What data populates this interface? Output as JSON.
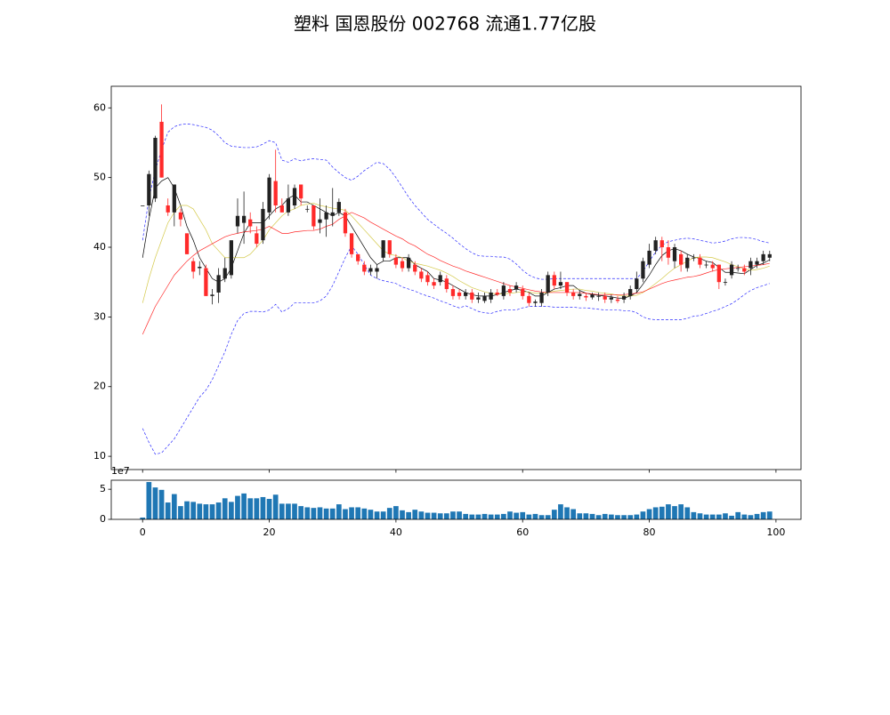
{
  "title": "塑料 国恩股份 002768 流通1.77亿股",
  "chart_data": [
    {
      "type": "candlestick",
      "x": [
        0,
        1,
        2,
        3,
        4,
        5,
        6,
        7,
        8,
        9,
        10,
        11,
        12,
        13,
        14,
        15,
        16,
        17,
        18,
        19,
        20,
        21,
        22,
        23,
        24,
        25,
        26,
        27,
        28,
        29,
        30,
        31,
        32,
        33,
        34,
        35,
        36,
        37,
        38,
        39,
        40,
        41,
        42,
        43,
        44,
        45,
        46,
        47,
        48,
        49,
        50,
        51,
        52,
        53,
        54,
        55,
        56,
        57,
        58,
        59,
        60,
        61,
        62,
        63,
        64,
        65,
        66,
        67,
        68,
        69,
        70,
        71,
        72,
        73,
        74,
        75,
        76,
        77,
        78,
        79,
        80,
        81,
        82,
        83,
        84,
        85,
        86,
        87,
        88,
        89,
        90,
        91,
        92,
        93,
        94,
        95,
        96,
        97,
        98,
        99
      ],
      "open": [
        46,
        46,
        47,
        58,
        46,
        45,
        45,
        42,
        38,
        37,
        37,
        33,
        33.5,
        35.5,
        36,
        43,
        43.5,
        44,
        42,
        41,
        45,
        49.5,
        46,
        45,
        46,
        49,
        45.5,
        46,
        43.5,
        44,
        44.5,
        45,
        45,
        42,
        39,
        37.5,
        36.5,
        36.5,
        38.5,
        41,
        38.5,
        38,
        37,
        37.5,
        36.5,
        36,
        35,
        35,
        35.5,
        34,
        33.5,
        33,
        33.5,
        32.5,
        32.3,
        32.5,
        33.5,
        33,
        34,
        34,
        34,
        33,
        32,
        32,
        33.5,
        36,
        34.5,
        35,
        33.5,
        33,
        33,
        32.8,
        33,
        33,
        32.5,
        32.5,
        32.5,
        33,
        34,
        35.5,
        37.5,
        39.5,
        41,
        40,
        38,
        39,
        37,
        38.5,
        38.5,
        37.5,
        37.5,
        37.5,
        35,
        36,
        37,
        37,
        37,
        37.5,
        38,
        38.5
      ],
      "high": [
        46,
        51,
        56,
        60.5,
        47,
        49,
        45.5,
        42,
        38.5,
        38,
        37.5,
        34,
        37,
        38.5,
        41,
        47,
        48,
        45,
        43,
        46.5,
        50.5,
        54,
        47,
        49,
        49,
        49,
        46,
        46,
        47,
        46,
        48.5,
        47,
        45.5,
        42,
        39,
        38,
        37.5,
        37.5,
        41,
        41,
        39,
        38.5,
        39,
        38,
        37,
        36.5,
        35.5,
        36.5,
        36,
        34.5,
        34,
        34,
        34,
        33.5,
        33.5,
        34,
        34,
        35,
        34.5,
        35,
        34.5,
        33.5,
        32.5,
        34,
        36.5,
        36.5,
        36.5,
        35,
        34,
        33.8,
        33.5,
        33.5,
        33.5,
        33.5,
        33.2,
        33,
        33.5,
        34.5,
        36.5,
        38.5,
        40.5,
        41.5,
        41.5,
        41,
        40.5,
        39.5,
        39,
        39,
        39,
        38,
        38,
        37.5,
        35.5,
        38,
        37.5,
        37.5,
        38.5,
        38.5,
        39.5,
        39.5
      ],
      "low": [
        46,
        44.5,
        46.5,
        50,
        44.5,
        43,
        43,
        39,
        35.5,
        36,
        33,
        31.8,
        32,
        35,
        35.5,
        42,
        40.5,
        42,
        40,
        40.5,
        44,
        45,
        45,
        44.5,
        45.5,
        46,
        45,
        42.5,
        42,
        41.5,
        43,
        44.5,
        41.5,
        38.5,
        37.5,
        36,
        36,
        35.5,
        38,
        38.5,
        37,
        36.5,
        36.5,
        36,
        35,
        34.5,
        34,
        34.5,
        33.5,
        32.5,
        32.5,
        32.5,
        32,
        32,
        32,
        32,
        33,
        32.5,
        33,
        33.5,
        32.5,
        31.5,
        31.5,
        31.5,
        33,
        34,
        34,
        33,
        32.5,
        32.5,
        32.3,
        32.5,
        32.3,
        32,
        32,
        32,
        32,
        32.5,
        33.5,
        35,
        37,
        39,
        38,
        37.5,
        37,
        36.5,
        36.5,
        38,
        37,
        37,
        36.5,
        34,
        34.5,
        35.5,
        36.5,
        36,
        36,
        37,
        37.5,
        38
      ],
      "close": [
        46,
        50.5,
        55.7,
        50,
        45,
        49,
        44,
        39,
        36.5,
        37.2,
        33,
        33.2,
        36,
        37,
        41,
        44.5,
        44.5,
        43,
        40.5,
        45.5,
        50,
        46,
        45,
        47,
        48.5,
        47,
        45.5,
        43,
        44,
        45,
        45,
        46.5,
        42,
        39,
        38,
        36.5,
        37,
        37,
        41,
        39,
        37.5,
        37,
        38.5,
        36.5,
        35.5,
        35,
        34.5,
        36,
        34,
        33,
        33,
        33.5,
        32.5,
        32.8,
        33,
        33.5,
        33.2,
        34.5,
        33.5,
        34.5,
        33,
        32,
        32.2,
        33.5,
        36,
        34.5,
        35,
        33.5,
        33,
        33.3,
        32.8,
        33.2,
        33,
        32.5,
        32.8,
        32.3,
        33,
        34,
        35.5,
        38,
        39.5,
        41,
        40,
        38.5,
        40,
        37.5,
        38.5,
        38.5,
        37.5,
        37.5,
        37,
        35,
        35,
        37.5,
        37,
        36.5,
        38,
        38,
        39,
        39
      ],
      "up_color": "#222222",
      "down_color": "#ff2a2a",
      "lines": [
        {
          "color": "#000000",
          "style": "solid",
          "values": [
            38.5,
            44,
            48.5,
            49.5,
            50,
            48.5,
            46,
            43,
            41,
            38.5,
            37,
            35.5,
            35,
            35.5,
            37,
            39.5,
            42,
            43.5,
            43.5,
            43.5,
            44.5,
            45.5,
            46,
            47,
            47.5,
            46.5,
            46.5,
            46,
            45.5,
            45,
            44.5,
            45,
            44.5,
            43,
            41.5,
            40,
            38.5,
            37.5,
            38,
            38,
            38.5,
            38.5,
            38.5,
            37.5,
            37,
            36.5,
            35.5,
            35.3,
            35,
            34.5,
            34,
            33.5,
            33.2,
            33,
            33,
            33,
            33.2,
            33.5,
            33.8,
            34,
            33.8,
            33.5,
            33,
            33,
            33.5,
            34,
            34.2,
            34.5,
            34.5,
            33.8,
            33.4,
            33.2,
            33.1,
            33,
            32.9,
            32.7,
            32.7,
            33,
            33.5,
            34.7,
            36,
            37.5,
            38.8,
            39.5,
            39.8,
            39.5,
            39,
            38.6,
            38.4,
            38,
            37.8,
            37.1,
            36.4,
            36.4,
            36.3,
            36.2,
            36.8,
            37.4,
            37.7,
            38.2
          ]
        },
        {
          "color": "#d4c94a",
          "style": "solid",
          "values": [
            32,
            35.5,
            38.5,
            41,
            43.5,
            45,
            46,
            46,
            45.5,
            44,
            42.5,
            40.5,
            39.5,
            38.5,
            38.5,
            38.5,
            38.5,
            39,
            40,
            41,
            42.5,
            43.5,
            44.5,
            45.2,
            45.5,
            46,
            46.2,
            46.3,
            46,
            45.8,
            45.6,
            45.5,
            45.3,
            44.5,
            43.5,
            42.5,
            41.5,
            40.5,
            39.5,
            39,
            38.8,
            38.5,
            38,
            37.7,
            37.5,
            37.3,
            37,
            36.7,
            36.3,
            35.8,
            35.2,
            34.7,
            34.2,
            33.9,
            33.6,
            33.4,
            33.3,
            33.3,
            33.4,
            33.5,
            33.6,
            33.6,
            33.4,
            33.4,
            33.5,
            33.7,
            33.8,
            33.9,
            34,
            34,
            33.8,
            33.7,
            33.5,
            33.4,
            33.3,
            33.1,
            33,
            33,
            33.1,
            33.5,
            34.1,
            34.8,
            35.5,
            36.3,
            37,
            37.5,
            38,
            38.5,
            38.6,
            38.6,
            38.5,
            38.2,
            37.9,
            37.5,
            37.2,
            36.9,
            36.7,
            36.8,
            37,
            37.3
          ]
        },
        {
          "color": "#ff2a2a",
          "style": "solid",
          "values": [
            27.5,
            29.5,
            31.5,
            33,
            34.5,
            36,
            37,
            38,
            38.8,
            39.5,
            40,
            40.5,
            41,
            41.5,
            41.8,
            42,
            42.2,
            42.3,
            42.4,
            42.6,
            43,
            42.5,
            42,
            42,
            42.2,
            42.3,
            42.4,
            42.4,
            42.6,
            43,
            43.3,
            44,
            44.5,
            45,
            44.6,
            44.2,
            43.6,
            43.1,
            42.6,
            42.1,
            41.6,
            41.2,
            40.6,
            40.2,
            39.6,
            39,
            38.6,
            38.1,
            37.7,
            37.3,
            37,
            36.6,
            36.3,
            36,
            35.7,
            35.4,
            35.1,
            34.8,
            34.5,
            34.3,
            34.1,
            33.9,
            33.7,
            33.6,
            33.5,
            33.5,
            33.5,
            33.5,
            33.5,
            33.5,
            33.4,
            33.3,
            33.2,
            33.2,
            33.2,
            33.2,
            33.2,
            33.3,
            33.4,
            33.6,
            34,
            34.4,
            34.8,
            35.1,
            35.3,
            35.5,
            35.7,
            35.8,
            36,
            36.3,
            36.6,
            36.8,
            36.9,
            37,
            37.1,
            37.2,
            37.3,
            37.4,
            37.5,
            37.7
          ]
        },
        {
          "color": "#2a2aff",
          "style": "dashed",
          "values": [
            41,
            47,
            51,
            54,
            56.5,
            57.3,
            57.6,
            57.7,
            57.6,
            57.4,
            57.2,
            56.8,
            56,
            55,
            54.5,
            54.4,
            54.3,
            54.3,
            54.4,
            54.8,
            55.3,
            55,
            52.5,
            52.2,
            52.7,
            52.4,
            52.6,
            52.7,
            52.6,
            52.5,
            51.5,
            50.7,
            50,
            49.6,
            50.2,
            51,
            51.6,
            52.2,
            52,
            51.2,
            50,
            48.6,
            47.2,
            46,
            45,
            44,
            43.3,
            42.6,
            42,
            41.3,
            40.5,
            39.8,
            39.2,
            38.8,
            38.7,
            38.7,
            38.6,
            38.6,
            38.3,
            37.6,
            36.7,
            36,
            35.6,
            35.4,
            35.4,
            35.5,
            35.5,
            35.5,
            35.5,
            35.5,
            35.5,
            35.5,
            35.5,
            35.5,
            35.5,
            35.5,
            35.5,
            35.5,
            35.5,
            36.5,
            38,
            39.3,
            40.3,
            40.8,
            41,
            41.2,
            41.3,
            41.2,
            41,
            40.8,
            40.6,
            40.7,
            40.9,
            41.2,
            41.4,
            41.4,
            41.3,
            41.1,
            40.8,
            40.6
          ]
        },
        {
          "color": "#2a2aff",
          "style": "dashed",
          "values": [
            14,
            12,
            10.3,
            10.5,
            11.5,
            12.5,
            14,
            15.5,
            17,
            18.5,
            19.5,
            21,
            23,
            25,
            27.5,
            29.5,
            30.5,
            30.8,
            30.8,
            30.7,
            31,
            31.8,
            30.7,
            31.2,
            32,
            32,
            32,
            32,
            32.3,
            33,
            34.5,
            36.5,
            38.5,
            40.2,
            39,
            37.5,
            36,
            35.5,
            35.2,
            35,
            34.8,
            34.3,
            34,
            33.7,
            33.3,
            33,
            32.7,
            32.3,
            32,
            31.6,
            31.3,
            31.6,
            31.2,
            30.8,
            30.6,
            30.5,
            30.8,
            31,
            31,
            31,
            31.3,
            31.5,
            31.5,
            31.5,
            31.5,
            31.4,
            31.4,
            31.4,
            31.4,
            31.3,
            31.3,
            31.2,
            31.1,
            31,
            31,
            31,
            30.9,
            30.9,
            30.6,
            30,
            29.7,
            29.6,
            29.6,
            29.6,
            29.6,
            29.6,
            29.8,
            30.1,
            30.2,
            30.5,
            30.8,
            31.1,
            31.5,
            31.9,
            32.5,
            33.2,
            33.8,
            34.2,
            34.5,
            34.8
          ]
        }
      ],
      "xlim": [
        -4.95,
        103.95
      ],
      "ylim": [
        8.1,
        63.1
      ],
      "yticks": [
        10,
        20,
        30,
        40,
        50,
        60
      ]
    },
    {
      "type": "bar",
      "x": [
        0,
        1,
        2,
        3,
        4,
        5,
        6,
        7,
        8,
        9,
        10,
        11,
        12,
        13,
        14,
        15,
        16,
        17,
        18,
        19,
        20,
        21,
        22,
        23,
        24,
        25,
        26,
        27,
        28,
        29,
        30,
        31,
        32,
        33,
        34,
        35,
        36,
        37,
        38,
        39,
        40,
        41,
        42,
        43,
        44,
        45,
        46,
        47,
        48,
        49,
        50,
        51,
        52,
        53,
        54,
        55,
        56,
        57,
        58,
        59,
        60,
        61,
        62,
        63,
        64,
        65,
        66,
        67,
        68,
        69,
        70,
        71,
        72,
        73,
        74,
        75,
        76,
        77,
        78,
        79,
        80,
        81,
        82,
        83,
        84,
        85,
        86,
        87,
        88,
        89,
        90,
        91,
        92,
        93,
        94,
        95,
        96,
        97,
        98,
        99
      ],
      "values": [
        3000000,
        62000000,
        53000000,
        49000000,
        28000000,
        42000000,
        22000000,
        30000000,
        29000000,
        26000000,
        25000000,
        25000000,
        28000000,
        35000000,
        29000000,
        39000000,
        43000000,
        35000000,
        35000000,
        37000000,
        34000000,
        41000000,
        26000000,
        26000000,
        26000000,
        22000000,
        20000000,
        19000000,
        20000000,
        18000000,
        18000000,
        25000000,
        17000000,
        20000000,
        20000000,
        18000000,
        16000000,
        13000000,
        13000000,
        19000000,
        22000000,
        15000000,
        12000000,
        16000000,
        13000000,
        11000000,
        11000000,
        10000000,
        10000000,
        13000000,
        13000000,
        9000000,
        8000000,
        8000000,
        9000000,
        8000000,
        8000000,
        9000000,
        13000000,
        11000000,
        12000000,
        8000000,
        9000000,
        7000000,
        7000000,
        16000000,
        25000000,
        20000000,
        17000000,
        10000000,
        10000000,
        9000000,
        7000000,
        9000000,
        8000000,
        7000000,
        7000000,
        7000000,
        8000000,
        13000000,
        17000000,
        20000000,
        21000000,
        25000000,
        22000000,
        25000000,
        20000000,
        12000000,
        10000000,
        8000000,
        8000000,
        8000000,
        10000000,
        6000000,
        12000000,
        8000000,
        7000000,
        9000000,
        12000000,
        13000000
      ],
      "color": "#1f77b4",
      "xlim": [
        -4.95,
        103.95
      ],
      "xticks": [
        0,
        20,
        40,
        60,
        80,
        100
      ],
      "ylim": [
        0,
        65000000
      ],
      "yticks": [
        0,
        {
          "value": 50000000,
          "label": "5"
        }
      ],
      "y_offset_label": "1e7"
    }
  ]
}
